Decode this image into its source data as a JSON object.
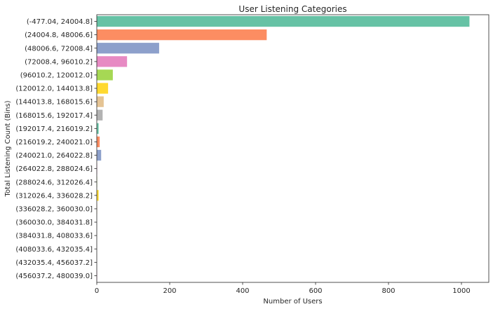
{
  "chart_data": {
    "type": "bar",
    "orientation": "horizontal",
    "title": "User Listening Categories",
    "xlabel": "Number of Users",
    "ylabel": "Total Listening Count (Bins)",
    "xlim": [
      0,
      1075
    ],
    "xticks": [
      0,
      200,
      400,
      600,
      800,
      1000
    ],
    "grid": false,
    "palette": [
      "#66c2a5",
      "#fc8d62",
      "#8da0cb",
      "#e78ac3",
      "#a6d854",
      "#ffd92f",
      "#e5c494",
      "#b3b3b3"
    ],
    "categories": [
      "(-477.04, 24004.8]",
      "(24004.8, 48006.6]",
      "(48006.6, 72008.4]",
      "(72008.4, 96010.2]",
      "(96010.2, 120012.0]",
      "(120012.0, 144013.8]",
      "(144013.8, 168015.6]",
      "(168015.6, 192017.4]",
      "(192017.4, 216019.2]",
      "(216019.2, 240021.0]",
      "(240021.0, 264022.8]",
      "(264022.8, 288024.6]",
      "(288024.6, 312026.4]",
      "(312026.4, 336028.2]",
      "(336028.2, 360030.0]",
      "(360030.0, 384031.8]",
      "(384031.8, 408033.6]",
      "(408033.6, 432035.4]",
      "(432035.4, 456037.2]",
      "(456037.2, 480039.0]"
    ],
    "values": [
      1022,
      466,
      171,
      83,
      44,
      31,
      19,
      16,
      5,
      8,
      12,
      1,
      1,
      5,
      1,
      0,
      0,
      0,
      0,
      1
    ]
  }
}
